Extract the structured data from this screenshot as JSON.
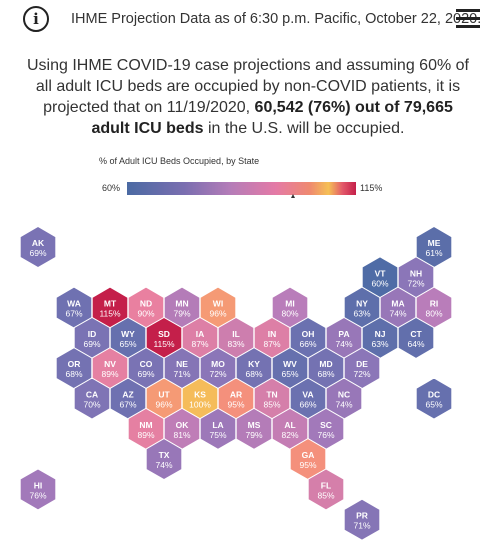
{
  "header": {
    "title": "IHME Projection Data as of 6:30 p.m. Pacific, October 22, 2020.",
    "info_icon": "info-icon",
    "menu_icon": "hamburger-menu-icon"
  },
  "summary": {
    "prefix": "Using IHME COVID-19 case projections and assuming 60% of all adult ICU beds are occupied by non-COVID patients, it is projected that on 11/19/2020, ",
    "highlight": "60,542 (76%) out of 79,665 adult ICU beds",
    "suffix": " in the U.S. will be occupied."
  },
  "legend": {
    "title": "% of Adult ICU Beds Occupied, by State",
    "min_label": "60%",
    "max_label": "115%",
    "marker_value": 100
  },
  "states": [
    {
      "abbr": "AK",
      "value": "69%",
      "col": 0,
      "row": 0,
      "color": "#7a73b4"
    },
    {
      "abbr": "ME",
      "value": "61%",
      "col": 11,
      "row": 0,
      "color": "#5b6ea9"
    },
    {
      "abbr": "VT",
      "value": "60%",
      "col": 9.5,
      "row": 1,
      "color": "#4f6ca6"
    },
    {
      "abbr": "NH",
      "value": "72%",
      "col": 10.5,
      "row": 1,
      "color": "#8b76b8"
    },
    {
      "abbr": "WA",
      "value": "67%",
      "col": 1,
      "row": 2,
      "color": "#6f71b1"
    },
    {
      "abbr": "MT",
      "value": "115%",
      "col": 2,
      "row": 2,
      "color": "#c41f4a"
    },
    {
      "abbr": "ND",
      "value": "90%",
      "col": 3,
      "row": 2,
      "color": "#e980a0"
    },
    {
      "abbr": "MN",
      "value": "79%",
      "col": 4,
      "row": 2,
      "color": "#b47cb8"
    },
    {
      "abbr": "WI",
      "value": "96%",
      "col": 5,
      "row": 2,
      "color": "#f59a75"
    },
    {
      "abbr": "MI",
      "value": "80%",
      "col": 7,
      "row": 2,
      "color": "#b97dba"
    },
    {
      "abbr": "NY",
      "value": "63%",
      "col": 9,
      "row": 2,
      "color": "#5e6fab"
    },
    {
      "abbr": "MA",
      "value": "74%",
      "col": 10,
      "row": 2,
      "color": "#9877b8"
    },
    {
      "abbr": "RI",
      "value": "80%",
      "col": 11,
      "row": 2,
      "color": "#b97dba"
    },
    {
      "abbr": "ID",
      "value": "69%",
      "col": 1.5,
      "row": 3,
      "color": "#7a73b4"
    },
    {
      "abbr": "WY",
      "value": "65%",
      "col": 2.5,
      "row": 3,
      "color": "#6670ae"
    },
    {
      "abbr": "SD",
      "value": "115%",
      "col": 3.5,
      "row": 3,
      "color": "#c41f4a"
    },
    {
      "abbr": "IA",
      "value": "87%",
      "col": 4.5,
      "row": 3,
      "color": "#dd7fa6"
    },
    {
      "abbr": "IL",
      "value": "83%",
      "col": 5.5,
      "row": 3,
      "color": "#cd7eae"
    },
    {
      "abbr": "IN",
      "value": "87%",
      "col": 6.5,
      "row": 3,
      "color": "#dd7fa6"
    },
    {
      "abbr": "OH",
      "value": "66%",
      "col": 7.5,
      "row": 3,
      "color": "#6b71b0"
    },
    {
      "abbr": "PA",
      "value": "74%",
      "col": 8.5,
      "row": 3,
      "color": "#9877b8"
    },
    {
      "abbr": "NJ",
      "value": "63%",
      "col": 9.5,
      "row": 3,
      "color": "#5e6fab"
    },
    {
      "abbr": "CT",
      "value": "64%",
      "col": 10.5,
      "row": 3,
      "color": "#626fac"
    },
    {
      "abbr": "OR",
      "value": "68%",
      "col": 1,
      "row": 4,
      "color": "#7472b2"
    },
    {
      "abbr": "NV",
      "value": "89%",
      "col": 2,
      "row": 4,
      "color": "#e580a2"
    },
    {
      "abbr": "CO",
      "value": "69%",
      "col": 3,
      "row": 4,
      "color": "#7a73b4"
    },
    {
      "abbr": "NE",
      "value": "71%",
      "col": 4,
      "row": 4,
      "color": "#8575b6"
    },
    {
      "abbr": "MO",
      "value": "72%",
      "col": 5,
      "row": 4,
      "color": "#8b76b8"
    },
    {
      "abbr": "KY",
      "value": "68%",
      "col": 6,
      "row": 4,
      "color": "#7472b2"
    },
    {
      "abbr": "WV",
      "value": "65%",
      "col": 7,
      "row": 4,
      "color": "#6670ae"
    },
    {
      "abbr": "MD",
      "value": "68%",
      "col": 8,
      "row": 4,
      "color": "#7472b2"
    },
    {
      "abbr": "DE",
      "value": "72%",
      "col": 9,
      "row": 4,
      "color": "#8b76b8"
    },
    {
      "abbr": "CA",
      "value": "70%",
      "col": 1.5,
      "row": 5,
      "color": "#7f74b5"
    },
    {
      "abbr": "AZ",
      "value": "67%",
      "col": 2.5,
      "row": 5,
      "color": "#6f71b1"
    },
    {
      "abbr": "UT",
      "value": "96%",
      "col": 3.5,
      "row": 5,
      "color": "#f59a75"
    },
    {
      "abbr": "KS",
      "value": "100%",
      "col": 4.5,
      "row": 5,
      "color": "#f5bc5a"
    },
    {
      "abbr": "AR",
      "value": "95%",
      "col": 5.5,
      "row": 5,
      "color": "#f4907c"
    },
    {
      "abbr": "TN",
      "value": "85%",
      "col": 6.5,
      "row": 5,
      "color": "#d57faa"
    },
    {
      "abbr": "VA",
      "value": "66%",
      "col": 7.5,
      "row": 5,
      "color": "#6b71b0"
    },
    {
      "abbr": "NC",
      "value": "74%",
      "col": 8.5,
      "row": 5,
      "color": "#9877b8"
    },
    {
      "abbr": "DC",
      "value": "65%",
      "col": 11,
      "row": 5,
      "color": "#6670ae"
    },
    {
      "abbr": "NM",
      "value": "89%",
      "col": 3,
      "row": 6,
      "color": "#e580a2"
    },
    {
      "abbr": "OK",
      "value": "81%",
      "col": 4,
      "row": 6,
      "color": "#bf7db7"
    },
    {
      "abbr": "LA",
      "value": "75%",
      "col": 5,
      "row": 6,
      "color": "#9d78b9"
    },
    {
      "abbr": "MS",
      "value": "79%",
      "col": 6,
      "row": 6,
      "color": "#b47cb8"
    },
    {
      "abbr": "AL",
      "value": "82%",
      "col": 7,
      "row": 6,
      "color": "#c47db4"
    },
    {
      "abbr": "SC",
      "value": "76%",
      "col": 8,
      "row": 6,
      "color": "#a279ba"
    },
    {
      "abbr": "TX",
      "value": "74%",
      "col": 3.5,
      "row": 7,
      "color": "#9877b8"
    },
    {
      "abbr": "GA",
      "value": "95%",
      "col": 7.5,
      "row": 7,
      "color": "#f4907c"
    },
    {
      "abbr": "HI",
      "value": "76%",
      "col": 0,
      "row": 8,
      "color": "#a279ba"
    },
    {
      "abbr": "FL",
      "value": "85%",
      "col": 8,
      "row": 8,
      "color": "#d57faa"
    },
    {
      "abbr": "PR",
      "value": "71%",
      "col": 9,
      "row": 9,
      "color": "#8575b6"
    }
  ]
}
